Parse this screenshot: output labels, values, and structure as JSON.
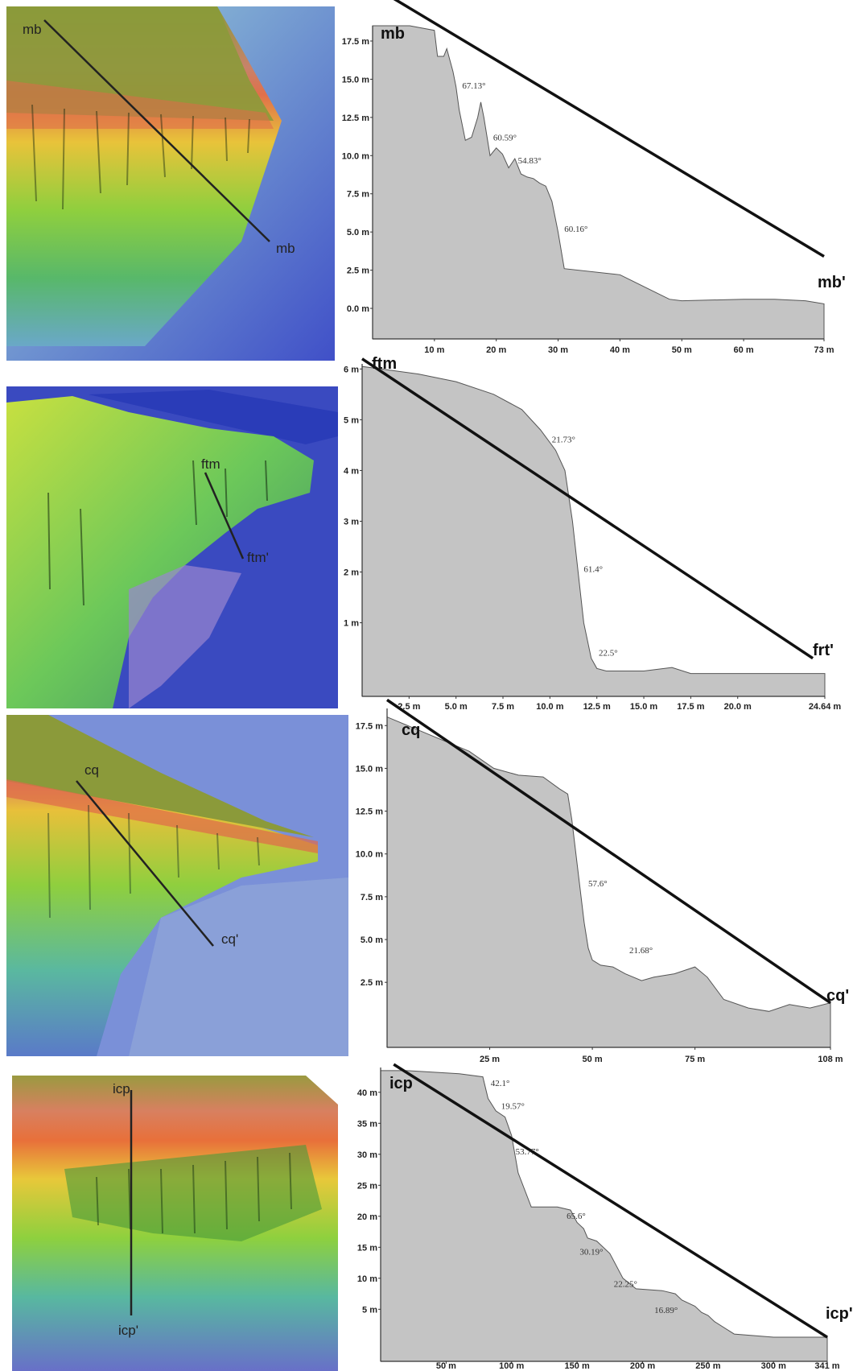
{
  "chart_data": [
    {
      "type": "area",
      "transect": {
        "start_label": "mb",
        "end_label": "mb'"
      },
      "map_labels": {
        "top": "mb",
        "bottom": "mb"
      },
      "xlim": [
        0,
        73
      ],
      "ylim": [
        -2,
        18.5
      ],
      "x_ticks": [
        {
          "v": 10,
          "label": "10 m"
        },
        {
          "v": 20,
          "label": "20 m"
        },
        {
          "v": 30,
          "label": "30 m"
        },
        {
          "v": 40,
          "label": "40 m"
        },
        {
          "v": 50,
          "label": "50 m"
        },
        {
          "v": 60,
          "label": "60 m"
        },
        {
          "v": 73,
          "label": "73 m"
        }
      ],
      "y_ticks": [
        {
          "v": 17.5,
          "label": "17.5 m"
        },
        {
          "v": 15,
          "label": "15.0 m"
        },
        {
          "v": 12.5,
          "label": "12.5 m"
        },
        {
          "v": 10,
          "label": "10.0 m"
        },
        {
          "v": 7.5,
          "label": "7.5 m"
        },
        {
          "v": 5,
          "label": "5.0 m"
        },
        {
          "v": 2.5,
          "label": "2.5 m"
        },
        {
          "v": 0,
          "label": "0.0 m"
        }
      ],
      "profile": {
        "x": [
          0,
          6,
          10,
          10.5,
          11.5,
          12,
          13,
          13.5,
          14,
          15,
          16,
          17,
          17.5,
          18,
          19,
          20,
          21,
          22,
          23,
          24,
          25,
          26,
          27,
          28,
          29,
          30,
          31,
          40,
          42,
          45,
          48,
          50,
          60,
          65,
          70,
          73
        ],
        "y": [
          18.5,
          18.5,
          18.2,
          16.5,
          16.5,
          17.0,
          15.5,
          14.5,
          13.0,
          11.0,
          11.2,
          12.5,
          13.5,
          12.5,
          10.0,
          10.5,
          10.1,
          9.2,
          9.8,
          8.8,
          8.6,
          8.5,
          8.2,
          8.0,
          7.0,
          5.0,
          2.6,
          2.2,
          1.8,
          1.2,
          0.6,
          0.5,
          0.6,
          0.6,
          0.5,
          0.3
        ]
      },
      "slope_labels": [
        {
          "x": 14.5,
          "y": 14.4,
          "text": "67.13°"
        },
        {
          "x": 19.5,
          "y": 11.0,
          "text": "60.59°"
        },
        {
          "x": 23.5,
          "y": 9.5,
          "text": "54.83°"
        },
        {
          "x": 31,
          "y": 5.0,
          "text": "60.16°"
        }
      ],
      "trend_line": [
        [
          2.5,
          20.5
        ],
        [
          73,
          3.4
        ]
      ]
    },
    {
      "type": "area",
      "transect": {
        "start_label": "ftm",
        "end_label": "frt'"
      },
      "map_labels": {
        "top": "ftm",
        "bottom": "ftm'"
      },
      "xlim": [
        0,
        24.64
      ],
      "ylim": [
        -0.45,
        6.1
      ],
      "x_ticks": [
        {
          "v": 2.5,
          "label": "2.5 m"
        },
        {
          "v": 5,
          "label": "5.0 m"
        },
        {
          "v": 7.5,
          "label": "7.5 m"
        },
        {
          "v": 10,
          "label": "10.0 m"
        },
        {
          "v": 12.5,
          "label": "12.5 m"
        },
        {
          "v": 15,
          "label": "15.0 m"
        },
        {
          "v": 17.5,
          "label": "17.5 m"
        },
        {
          "v": 20,
          "label": "20.0 m"
        },
        {
          "v": 24.64,
          "label": "24.64 m"
        }
      ],
      "y_ticks": [
        {
          "v": 6,
          "label": "6 m"
        },
        {
          "v": 5,
          "label": "5 m"
        },
        {
          "v": 4,
          "label": "4 m"
        },
        {
          "v": 3,
          "label": "3 m"
        },
        {
          "v": 2,
          "label": "2 m"
        },
        {
          "v": 1,
          "label": "1 m"
        }
      ],
      "profile": {
        "x": [
          0,
          1,
          3,
          5,
          7,
          8.5,
          9.5,
          10.3,
          10.8,
          11.0,
          11.2,
          11.5,
          11.8,
          12.2,
          12.5,
          13,
          15,
          16.5,
          17.5,
          20,
          24.64
        ],
        "y": [
          6.05,
          6.0,
          5.9,
          5.75,
          5.5,
          5.2,
          4.8,
          4.4,
          4.0,
          3.5,
          3.0,
          2.0,
          1.0,
          0.3,
          0.1,
          0.05,
          0.05,
          0.12,
          0.0,
          0.0,
          0.0
        ]
      },
      "slope_labels": [
        {
          "x": 10.1,
          "y": 4.55,
          "text": "21.73°"
        },
        {
          "x": 11.8,
          "y": 2.0,
          "text": "61.4°"
        },
        {
          "x": 12.6,
          "y": 0.35,
          "text": "22.5°"
        }
      ],
      "trend_line": [
        [
          0,
          6.2
        ],
        [
          24.0,
          0.3
        ]
      ]
    },
    {
      "type": "area",
      "transect": {
        "start_label": "cq",
        "end_label": "cq'"
      },
      "map_labels": {
        "top": "cq",
        "bottom": "cq'"
      },
      "xlim": [
        0,
        108
      ],
      "ylim": [
        -1.3,
        18.5
      ],
      "x_ticks": [
        {
          "v": 25,
          "label": "25 m"
        },
        {
          "v": 50,
          "label": "50 m"
        },
        {
          "v": 75,
          "label": "75 m"
        },
        {
          "v": 108,
          "label": "108 m"
        }
      ],
      "y_ticks": [
        {
          "v": 17.5,
          "label": "17.5 m"
        },
        {
          "v": 15,
          "label": "15.0 m"
        },
        {
          "v": 12.5,
          "label": "12.5 m"
        },
        {
          "v": 10,
          "label": "10.0 m"
        },
        {
          "v": 7.5,
          "label": "7.5 m"
        },
        {
          "v": 5,
          "label": "5.0 m"
        },
        {
          "v": 2.5,
          "label": "2.5 m"
        }
      ],
      "profile": {
        "x": [
          0,
          10,
          20,
          26,
          32,
          38,
          42,
          44,
          45,
          47,
          48,
          49,
          50,
          52,
          55,
          58,
          62,
          65,
          70,
          75,
          78,
          82,
          88,
          93,
          98,
          103,
          108
        ],
        "y": [
          18.0,
          17.0,
          16.0,
          15.0,
          14.6,
          14.5,
          13.8,
          13.5,
          12.0,
          8.0,
          6.0,
          4.5,
          3.8,
          3.5,
          3.4,
          3.0,
          2.6,
          2.8,
          3.0,
          3.4,
          2.8,
          1.5,
          1.0,
          0.8,
          1.2,
          1.0,
          1.3
        ]
      },
      "slope_labels": [
        {
          "x": 49,
          "y": 8.1,
          "text": "57.6°"
        },
        {
          "x": 59,
          "y": 4.2,
          "text": "21.68°"
        }
      ],
      "trend_line": [
        [
          0,
          19.0
        ],
        [
          108,
          1.3
        ]
      ]
    },
    {
      "type": "area",
      "transect": {
        "start_label": "icp",
        "end_label": "icp'"
      },
      "map_labels": {
        "top": "icp",
        "bottom": "icp'"
      },
      "xlim": [
        0,
        341
      ],
      "ylim": [
        -3.4,
        44
      ],
      "x_ticks": [
        {
          "v": 50,
          "label": "50 m"
        },
        {
          "v": 100,
          "label": "100 m"
        },
        {
          "v": 150,
          "label": "150 m"
        },
        {
          "v": 200,
          "label": "200 m"
        },
        {
          "v": 250,
          "label": "250 m"
        },
        {
          "v": 300,
          "label": "300 m"
        },
        {
          "v": 341,
          "label": "341 m"
        }
      ],
      "y_ticks": [
        {
          "v": 40,
          "label": "40 m"
        },
        {
          "v": 35,
          "label": "35 m"
        },
        {
          "v": 30,
          "label": "30 m"
        },
        {
          "v": 25,
          "label": "25 m"
        },
        {
          "v": 20,
          "label": "20 m"
        },
        {
          "v": 15,
          "label": "15 m"
        },
        {
          "v": 10,
          "label": "10 m"
        },
        {
          "v": 5,
          "label": "5 m"
        }
      ],
      "profile": {
        "x": [
          0,
          20,
          60,
          78,
          82,
          88,
          95,
          100,
          105,
          115,
          135,
          145,
          150,
          155,
          158,
          165,
          175,
          185,
          195,
          215,
          225,
          230,
          240,
          245,
          250,
          255,
          270,
          300,
          341
        ],
        "y": [
          43.5,
          43.5,
          43.0,
          42.5,
          39.0,
          37.0,
          36.0,
          33.0,
          27.0,
          21.5,
          21.5,
          21.0,
          19.0,
          18.0,
          16.5,
          16.0,
          14.0,
          10.0,
          8.3,
          8.0,
          7.5,
          6.5,
          5.5,
          4.5,
          4.0,
          3.0,
          1.0,
          0.5,
          0.5
        ]
      },
      "slope_labels": [
        {
          "x": 84,
          "y": 41.0,
          "text": "42.1°"
        },
        {
          "x": 92,
          "y": 37.3,
          "text": "19.57°"
        },
        {
          "x": 103,
          "y": 30.0,
          "text": "53.77°"
        },
        {
          "x": 142,
          "y": 19.6,
          "text": "65.6°"
        },
        {
          "x": 152,
          "y": 13.8,
          "text": "30.19°"
        },
        {
          "x": 178,
          "y": 8.6,
          "text": "22.25°"
        },
        {
          "x": 209,
          "y": 4.4,
          "text": "16.89°"
        }
      ],
      "trend_line": [
        [
          10,
          44.5
        ],
        [
          341,
          0.5
        ]
      ]
    }
  ]
}
